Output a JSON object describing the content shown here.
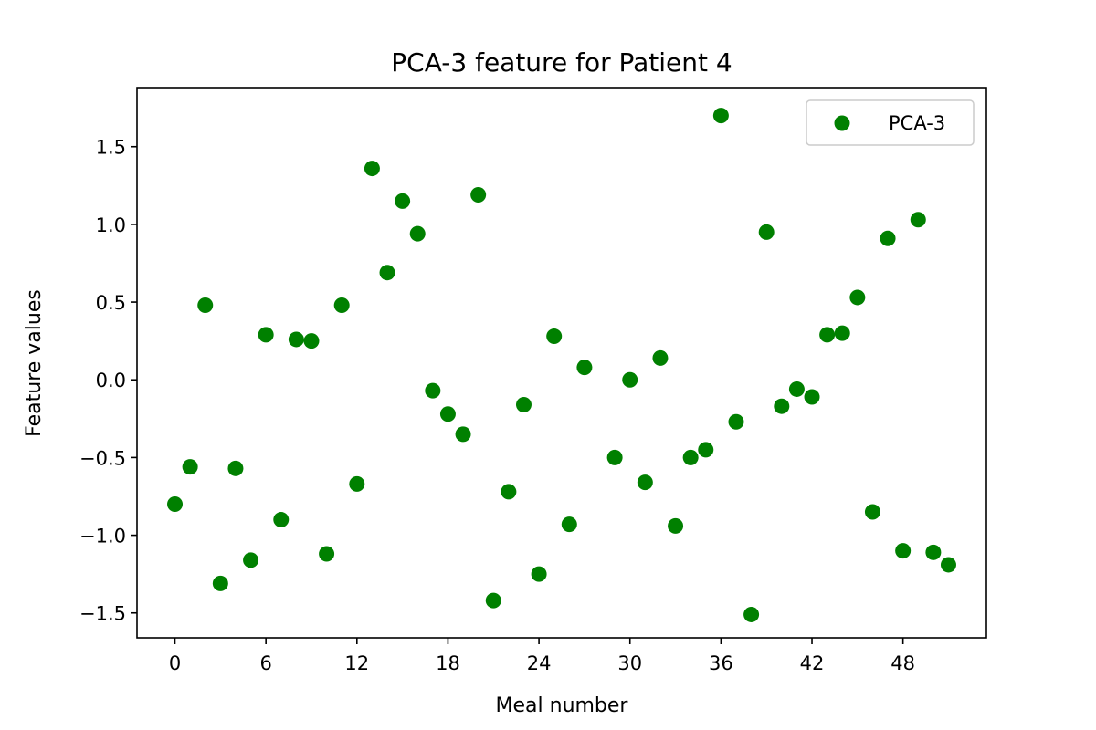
{
  "chart_data": {
    "type": "scatter",
    "title": "PCA-3 feature for Patient 4",
    "xlabel": "Meal number",
    "ylabel": "Feature values",
    "xlim": [
      -2.5,
      53.5
    ],
    "ylim": [
      -1.66,
      1.88
    ],
    "xticks": [
      0,
      6,
      12,
      18,
      24,
      30,
      36,
      42,
      48
    ],
    "xtick_labels": [
      "0",
      "6",
      "12",
      "18",
      "24",
      "30",
      "36",
      "42",
      "48"
    ],
    "yticks": [
      -1.5,
      -1.0,
      -0.5,
      0.0,
      0.5,
      1.0,
      1.5
    ],
    "ytick_labels": [
      "−1.5",
      "−1.0",
      "−0.5",
      "0.0",
      "0.5",
      "1.0",
      "1.5"
    ],
    "legend_position": "top-right",
    "grid": false,
    "color": "#008000",
    "series": [
      {
        "name": "PCA-3",
        "x": [
          0,
          1,
          2,
          3,
          4,
          5,
          6,
          7,
          8,
          9,
          10,
          11,
          12,
          13,
          14,
          15,
          16,
          17,
          18,
          19,
          20,
          21,
          22,
          23,
          24,
          25,
          26,
          27,
          29,
          30,
          31,
          32,
          33,
          34,
          35,
          36,
          37,
          38,
          39,
          40,
          41,
          42,
          43,
          44,
          45,
          46,
          47,
          48,
          49,
          50,
          51
        ],
        "y": [
          -0.8,
          -0.56,
          0.48,
          -1.31,
          -0.57,
          -1.16,
          0.29,
          -0.9,
          0.26,
          0.25,
          -1.12,
          0.48,
          -0.67,
          1.36,
          0.69,
          1.15,
          0.94,
          -0.07,
          -0.22,
          -0.35,
          1.19,
          -1.42,
          -0.72,
          -0.16,
          -1.25,
          0.28,
          -0.93,
          0.08,
          -0.5,
          0.0,
          -0.66,
          0.14,
          -0.94,
          -0.5,
          -0.45,
          1.7,
          -0.27,
          -1.51,
          0.95,
          -0.17,
          -0.06,
          -0.11,
          0.29,
          0.3,
          0.53,
          -0.85,
          0.91,
          -1.1,
          1.03,
          -1.11,
          -1.19
        ]
      }
    ]
  }
}
